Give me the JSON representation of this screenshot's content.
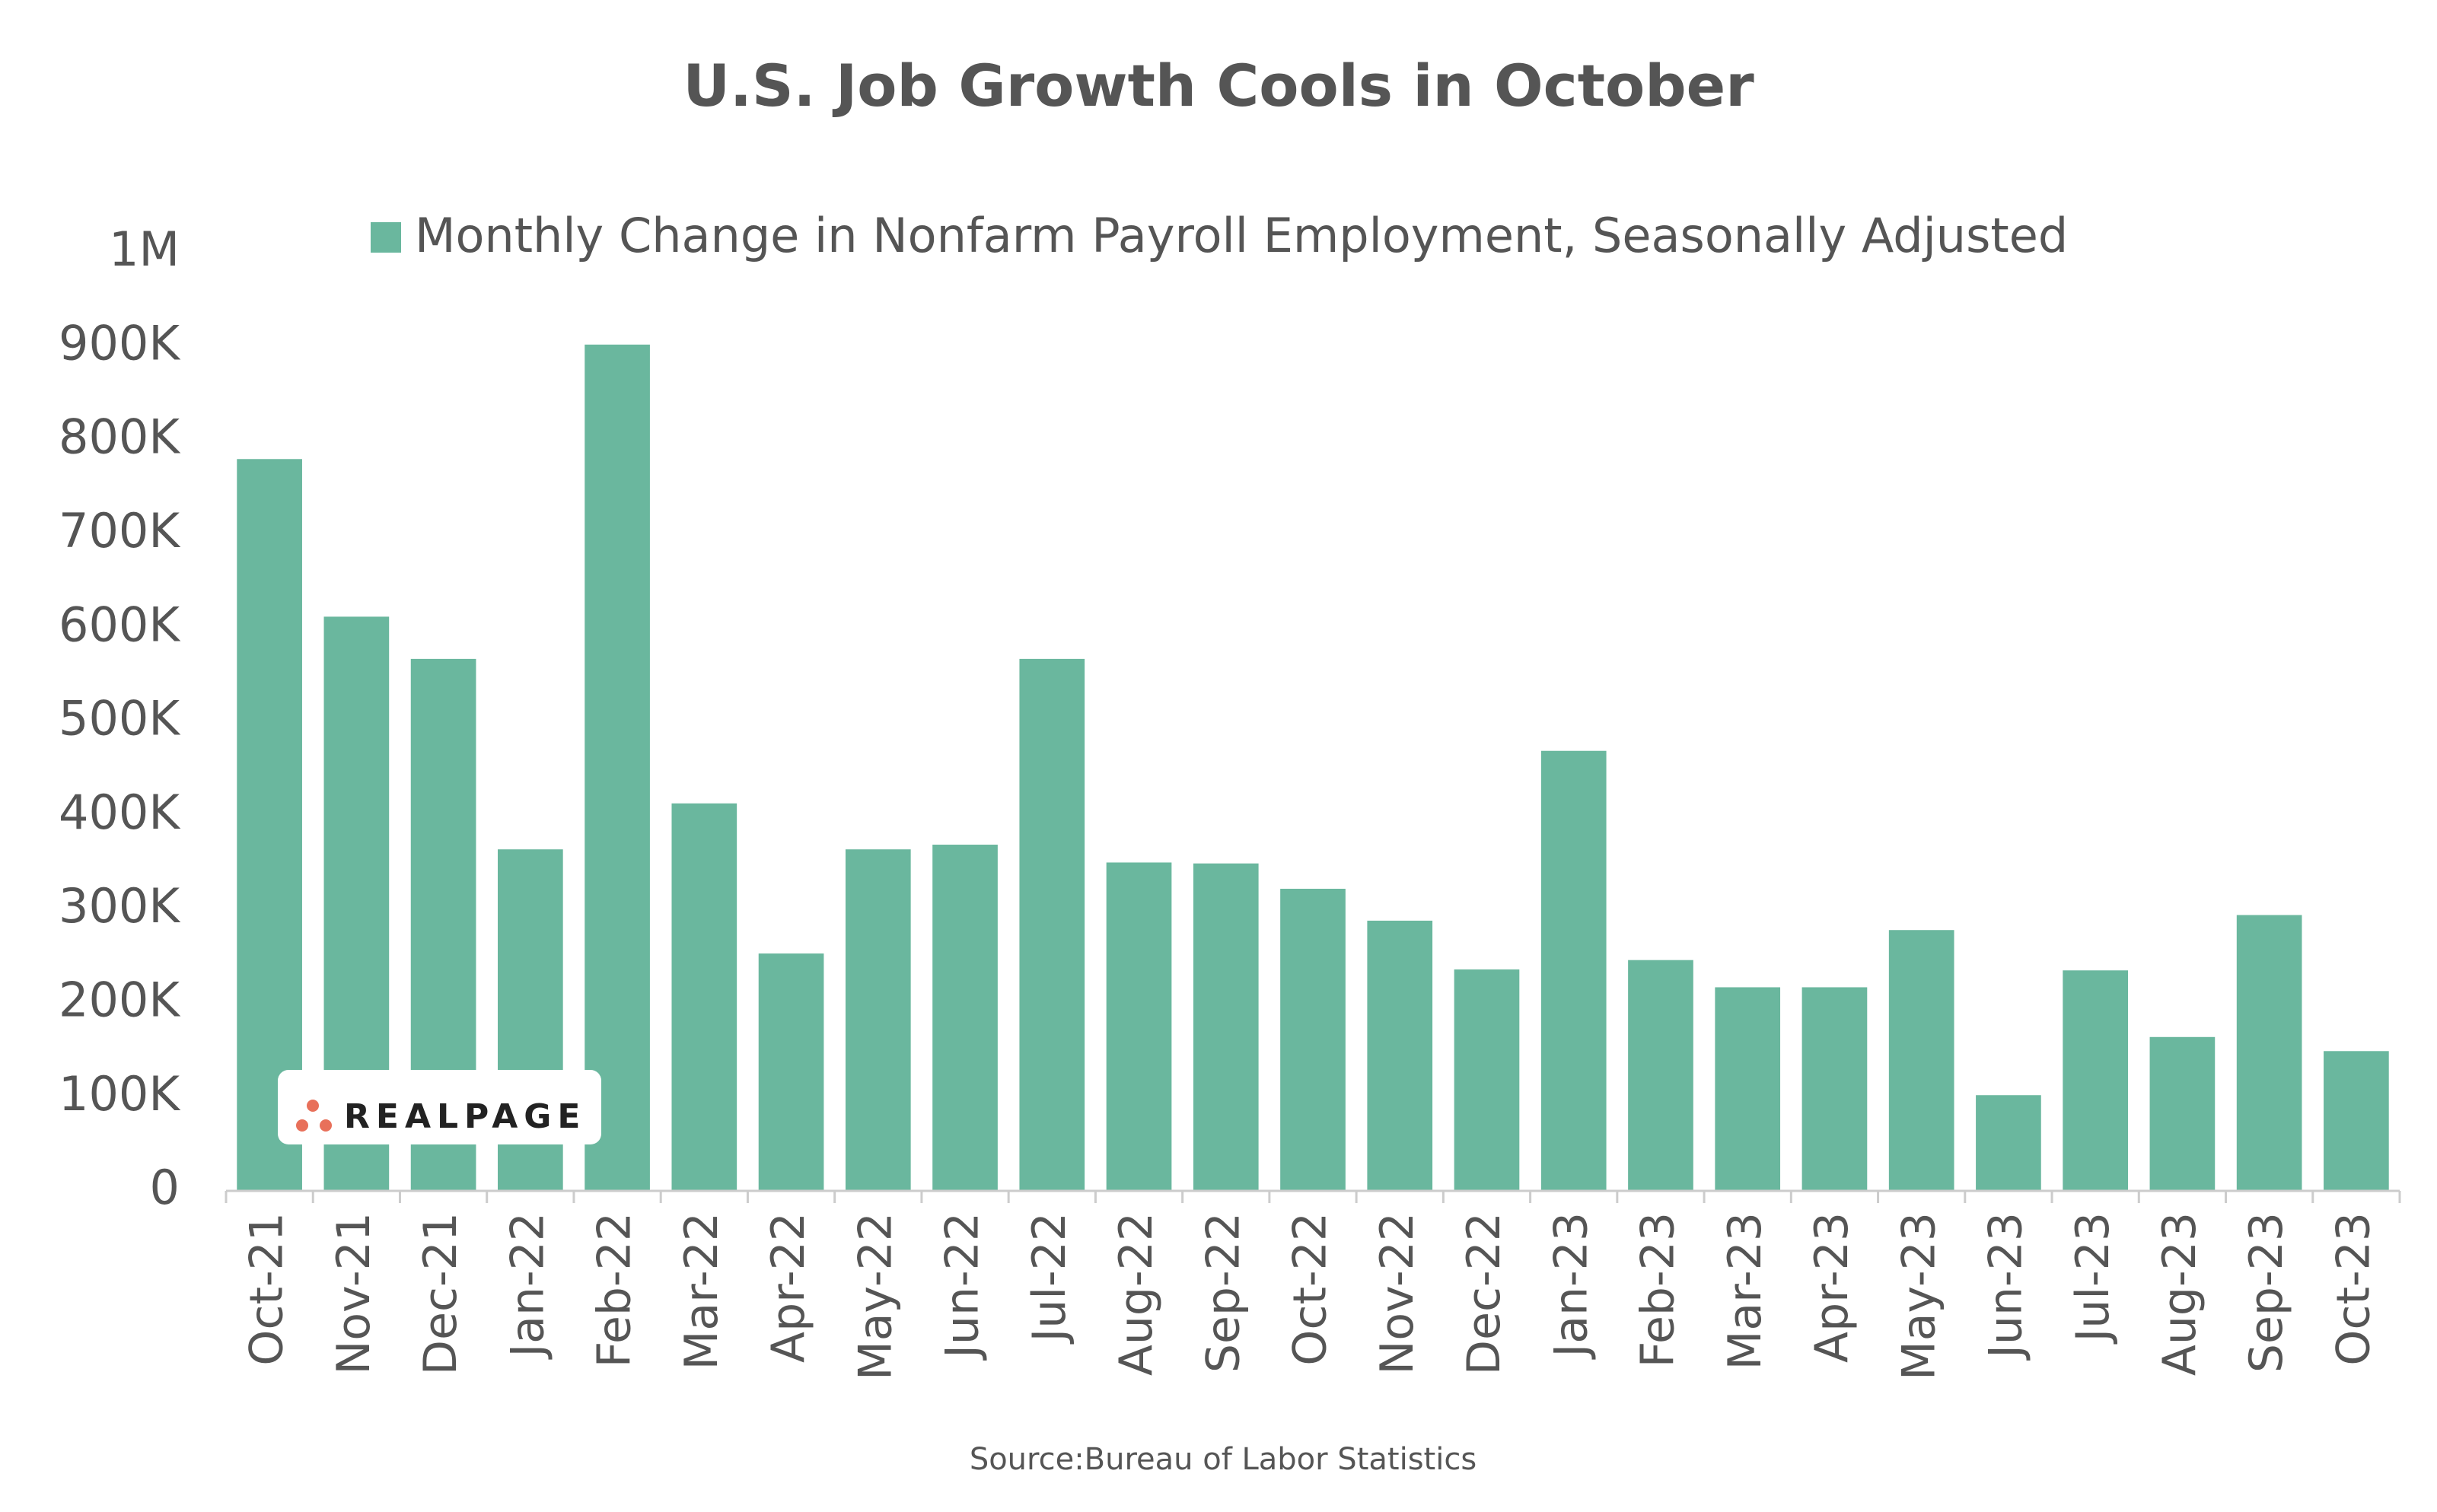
{
  "chart_data": {
    "type": "bar",
    "title": "U.S. Job Growth Cools in October",
    "source": "Source:Bureau of Labor Statistics",
    "logo": "REALPAGE",
    "categories": [
      "Oct-21",
      "Nov-21",
      "Dec-21",
      "Jan-22",
      "Feb-22",
      "Mar-22",
      "Apr-22",
      "May-22",
      "Jun-22",
      "Jul-22",
      "Aug-22",
      "Sep-22",
      "Oct-22",
      "Nov-22",
      "Dec-22",
      "Jan-23",
      "Feb-23",
      "Mar-23",
      "Apr-23",
      "May-23",
      "Jun-23",
      "Jul-23",
      "Aug-23",
      "Sep-23",
      "Oct-23"
    ],
    "series": [
      {
        "name": "Monthly Change in Nonfarm Payroll Employment, Seasonally Adjusted",
        "color": "#6ab79e",
        "values": [
          780000,
          612000,
          567000,
          364000,
          902000,
          413000,
          253000,
          364000,
          369000,
          567000,
          350000,
          349000,
          322000,
          288000,
          236000,
          469000,
          246000,
          217000,
          217000,
          278000,
          102000,
          235000,
          164000,
          294000,
          149000
        ]
      }
    ],
    "ylim": [
      0,
      1000000
    ],
    "yticks": [
      0,
      {
        "value": 100000,
        "label": "100K"
      },
      {
        "value": 200000,
        "label": "200K"
      },
      {
        "value": 300000,
        "label": "300K"
      },
      {
        "value": 400000,
        "label": "400K"
      },
      {
        "value": 500000,
        "label": "500K"
      },
      {
        "value": 600000,
        "label": "600K"
      },
      {
        "value": 700000,
        "label": "700K"
      },
      {
        "value": 800000,
        "label": "800K"
      },
      {
        "value": 900000,
        "label": "900K"
      },
      {
        "value": 1000000,
        "label": "1M"
      }
    ],
    "grid": false,
    "legend": "top"
  }
}
